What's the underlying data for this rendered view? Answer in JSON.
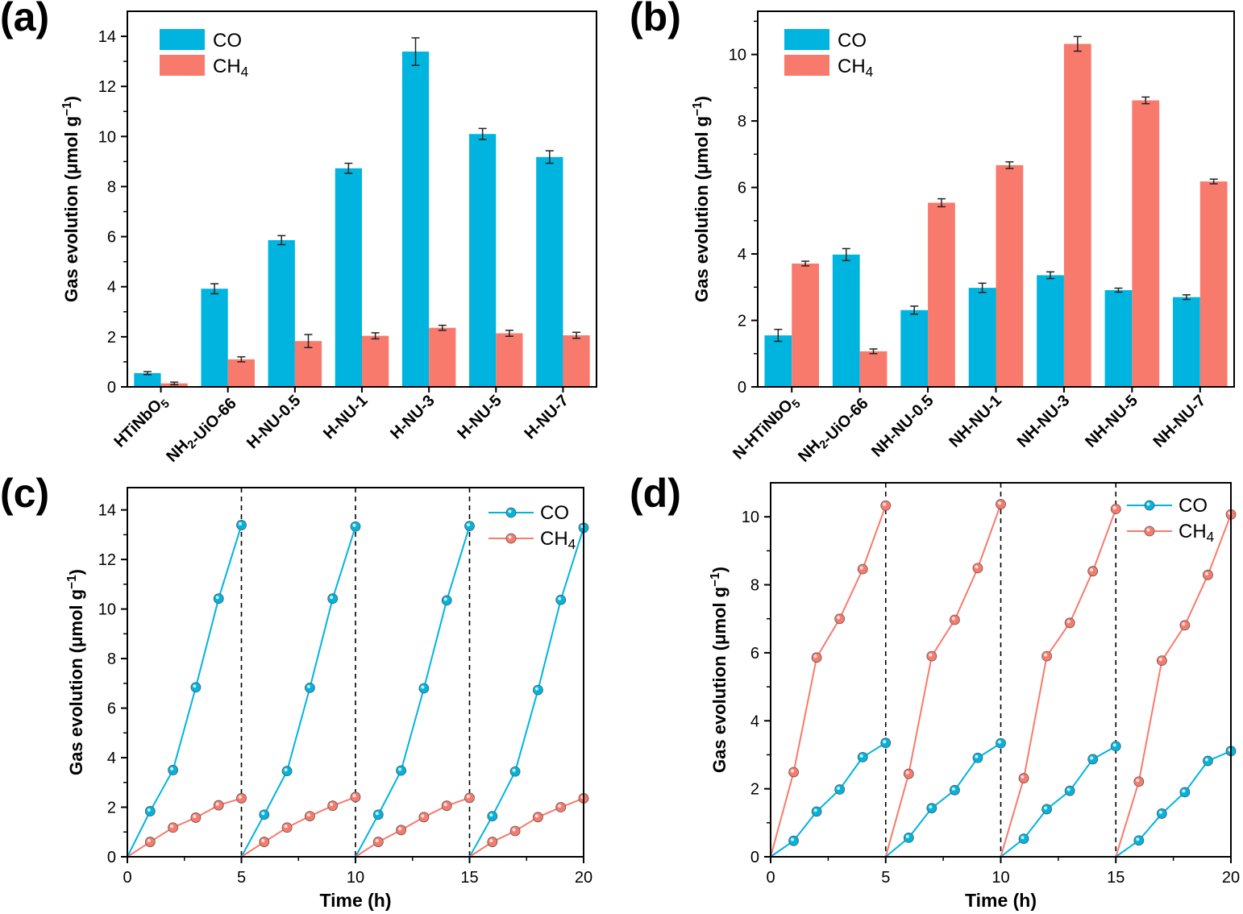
{
  "colors": {
    "co": "#00b4e0",
    "ch4": "#f87a6c",
    "axis": "#000000"
  },
  "panel_labels": [
    "(a)",
    "(b)",
    "(c)",
    "(d)"
  ],
  "chart_data": [
    {
      "type": "bar",
      "title": "",
      "xlabel": "",
      "ylabel": "Gas evolution (μmol g⁻¹)",
      "ylim": [
        0,
        15
      ],
      "yticks": [
        0,
        2,
        4,
        6,
        8,
        10,
        12,
        14
      ],
      "categories": [
        "HTiNbO5",
        "NH2-UiO-66",
        "H-NU-0.5",
        "H-NU-1",
        "H-NU-3",
        "H-NU-5",
        "H-NU-7"
      ],
      "legend_placement": "top-left",
      "series": [
        {
          "name": "CO",
          "values": [
            0.55,
            3.92,
            5.86,
            8.73,
            13.39,
            10.1,
            9.18
          ],
          "errors": [
            0.06,
            0.2,
            0.18,
            0.2,
            0.55,
            0.22,
            0.25
          ]
        },
        {
          "name": "CH4",
          "values": [
            0.14,
            1.1,
            1.83,
            2.04,
            2.36,
            2.14,
            2.06
          ],
          "errors": [
            0.05,
            0.1,
            0.26,
            0.12,
            0.1,
            0.12,
            0.12
          ]
        }
      ]
    },
    {
      "type": "bar",
      "title": "",
      "xlabel": "",
      "ylabel": "Gas evolution (μmol g⁻¹)",
      "ylim": [
        0,
        11.3
      ],
      "yticks": [
        0,
        2,
        4,
        6,
        8,
        10
      ],
      "categories": [
        "N-HTiNbO5",
        "NH2-UiO-66",
        "NH-NU-0.5",
        "NH-NU-1",
        "NH-NU-3",
        "NH-NU-5",
        "NH-NU-7"
      ],
      "legend_placement": "top-left",
      "series": [
        {
          "name": "CO",
          "values": [
            1.55,
            3.98,
            2.31,
            2.98,
            3.36,
            2.91,
            2.7
          ],
          "errors": [
            0.18,
            0.18,
            0.12,
            0.14,
            0.1,
            0.06,
            0.07
          ]
        },
        {
          "name": "CH4",
          "values": [
            3.71,
            1.07,
            5.54,
            6.67,
            10.32,
            8.62,
            6.18
          ],
          "errors": [
            0.07,
            0.07,
            0.12,
            0.1,
            0.22,
            0.1,
            0.07
          ]
        }
      ]
    },
    {
      "type": "line",
      "title": "",
      "xlabel": "Time (h)",
      "ylabel": "Gas evolution (μmol g⁻¹)",
      "xlim": [
        0,
        20
      ],
      "ylim": [
        0,
        14.9
      ],
      "xticks": [
        0,
        5,
        10,
        15,
        20
      ],
      "yticks": [
        0,
        2,
        4,
        6,
        8,
        10,
        12,
        14
      ],
      "cycle_dividers": [
        5,
        10,
        15
      ],
      "legend_placement": "top-right",
      "series": [
        {
          "name": "CO",
          "segments": [
            {
              "x": [
                0,
                1,
                2,
                3,
                4,
                5
              ],
              "y": [
                0,
                1.84,
                3.5,
                6.84,
                10.42,
                13.39
              ]
            },
            {
              "x": [
                5,
                6,
                7,
                8,
                9,
                10
              ],
              "y": [
                0,
                1.7,
                3.46,
                6.82,
                10.42,
                13.33
              ]
            },
            {
              "x": [
                10,
                11,
                12,
                13,
                14,
                15
              ],
              "y": [
                0,
                1.7,
                3.48,
                6.8,
                10.35,
                13.35
              ]
            },
            {
              "x": [
                15,
                16,
                17,
                18,
                19,
                20
              ],
              "y": [
                0,
                1.64,
                3.44,
                6.73,
                10.37,
                13.28
              ]
            }
          ]
        },
        {
          "name": "CH4",
          "segments": [
            {
              "x": [
                0,
                1,
                2,
                3,
                4,
                5
              ],
              "y": [
                0,
                0.6,
                1.18,
                1.58,
                2.08,
                2.36
              ]
            },
            {
              "x": [
                5,
                6,
                7,
                8,
                9,
                10
              ],
              "y": [
                0,
                0.6,
                1.18,
                1.64,
                2.06,
                2.41
              ]
            },
            {
              "x": [
                10,
                11,
                12,
                13,
                14,
                15
              ],
              "y": [
                0,
                0.6,
                1.08,
                1.6,
                2.06,
                2.38
              ]
            },
            {
              "x": [
                15,
                16,
                17,
                18,
                19,
                20
              ],
              "y": [
                0,
                0.6,
                1.04,
                1.6,
                2.0,
                2.36
              ]
            }
          ]
        }
      ]
    },
    {
      "type": "line",
      "title": "",
      "xlabel": "Time (h)",
      "ylabel": "Gas evolution (μmol g⁻¹)",
      "xlim": [
        0,
        20
      ],
      "ylim": [
        0,
        11.0
      ],
      "xticks": [
        0,
        5,
        10,
        15,
        20
      ],
      "yticks": [
        0,
        2,
        4,
        6,
        8,
        10
      ],
      "cycle_dividers": [
        5,
        10,
        15
      ],
      "legend_placement": "top-right",
      "series": [
        {
          "name": "CO",
          "segments": [
            {
              "x": [
                0,
                1,
                2,
                3,
                4,
                5
              ],
              "y": [
                0,
                0.47,
                1.33,
                1.98,
                2.93,
                3.35
              ]
            },
            {
              "x": [
                5,
                6,
                7,
                8,
                9,
                10
              ],
              "y": [
                0,
                0.56,
                1.43,
                1.96,
                2.91,
                3.34
              ]
            },
            {
              "x": [
                10,
                11,
                12,
                13,
                14,
                15
              ],
              "y": [
                0,
                0.53,
                1.4,
                1.94,
                2.87,
                3.25
              ]
            },
            {
              "x": [
                15,
                16,
                17,
                18,
                19,
                20
              ],
              "y": [
                0,
                0.48,
                1.27,
                1.9,
                2.82,
                3.11
              ]
            }
          ]
        },
        {
          "name": "CH4",
          "segments": [
            {
              "x": [
                0,
                1,
                2,
                3,
                4,
                5
              ],
              "y": [
                0,
                2.49,
                5.86,
                7.0,
                8.46,
                10.33
              ]
            },
            {
              "x": [
                5,
                6,
                7,
                8,
                9,
                10
              ],
              "y": [
                0,
                2.44,
                5.9,
                6.97,
                8.49,
                10.37
              ]
            },
            {
              "x": [
                10,
                11,
                12,
                13,
                14,
                15
              ],
              "y": [
                0,
                2.31,
                5.9,
                6.88,
                8.4,
                10.23
              ]
            },
            {
              "x": [
                15,
                16,
                17,
                18,
                19,
                20
              ],
              "y": [
                0,
                2.21,
                5.77,
                6.81,
                8.29,
                10.07
              ]
            }
          ]
        }
      ]
    }
  ]
}
